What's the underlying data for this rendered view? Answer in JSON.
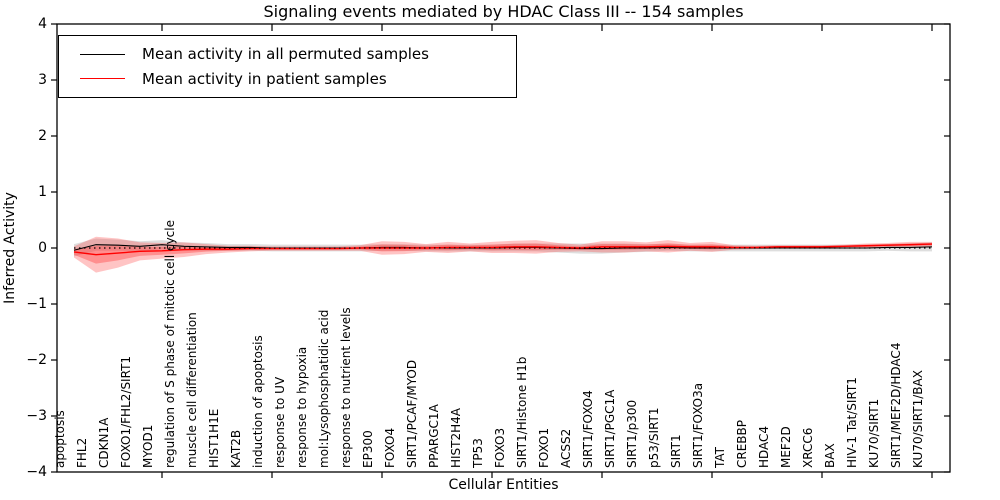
{
  "title": "Signaling events mediated by HDAC Class III -- 154 samples",
  "legend": {
    "entries": [
      {
        "label": "Mean activity in all permuted samples",
        "color": "#000000"
      },
      {
        "label": "Mean activity in patient samples",
        "color": "#ff0000"
      }
    ],
    "position": "upper left"
  },
  "chart_data": {
    "type": "line",
    "title": "Signaling events mediated by HDAC Class III -- 154 samples",
    "xlabel": "Cellular Entities",
    "ylabel": "Inferred Activity",
    "ylim": [
      -4,
      4
    ],
    "yticks": [
      -4,
      -3,
      -2,
      -1,
      0,
      1,
      2,
      3,
      4
    ],
    "grid": false,
    "zero_line": true,
    "legend_position": "upper left",
    "categories": [
      "apoptosis",
      "FHL2",
      "CDKN1A",
      "FOXO1/FHL2/SIRT1",
      "MYOD1",
      "regulation of S phase of mitotic cell cycle",
      "muscle cell differentiation",
      "HIST1H1E",
      "KAT2B",
      "induction of apoptosis",
      "response to UV",
      "response to hypoxia",
      "mol:Lysophosphatidic acid",
      "response to nutrient levels",
      "EP300",
      "FOXO4",
      "SIRT1/PCAF/MYOD",
      "PPARGC1A",
      "HIST2H4A",
      "TP53",
      "FOXO3",
      "SIRT1/Histone H1b",
      "FOXO1",
      "ACSS2",
      "SIRT1/FOXO4",
      "SIRT1/PGC1A",
      "SIRT1/p300",
      "p53/SIRT1",
      "SIRT1",
      "SIRT1/FOXO3a",
      "TAT",
      "CREBBP",
      "HDAC4",
      "MEF2D",
      "XRCC6",
      "BAX",
      "HIV-1 Tat/SIRT1",
      "KU70/SIRT1",
      "SIRT1/MEF2D/HDAC4",
      "KU70/SIRT1/BAX"
    ],
    "series": [
      {
        "name": "Mean activity in all permuted samples",
        "color": "#000000",
        "values": [
          -0.04,
          0.06,
          0.05,
          0.03,
          0.06,
          0.03,
          0.02,
          0.01,
          0.01,
          0.0,
          0.0,
          0.0,
          0.0,
          0.0,
          0.01,
          0.01,
          0.0,
          0.0,
          0.0,
          0.0,
          0.01,
          0.01,
          0.0,
          -0.01,
          -0.01,
          0.0,
          0.0,
          0.01,
          0.0,
          0.0,
          0.0,
          0.0,
          0.0,
          0.0,
          0.0,
          0.0,
          0.0,
          0.01,
          0.01,
          0.02
        ]
      },
      {
        "name": "Mean activity in patient samples",
        "color": "#ff0000",
        "values": [
          -0.07,
          -0.12,
          -0.09,
          -0.06,
          -0.05,
          -0.03,
          -0.02,
          -0.02,
          -0.01,
          -0.01,
          -0.01,
          -0.01,
          -0.01,
          0.0,
          0.0,
          0.0,
          0.0,
          0.01,
          0.01,
          0.01,
          0.02,
          0.02,
          0.01,
          0.0,
          0.02,
          0.02,
          0.02,
          0.03,
          0.02,
          0.02,
          0.01,
          0.01,
          0.02,
          0.02,
          0.02,
          0.03,
          0.04,
          0.05,
          0.06,
          0.07
        ]
      }
    ],
    "bands": [
      {
        "name": "permuted samples range",
        "color": "#c8c8c8",
        "opacity": 0.6,
        "center_series": 0,
        "half_widths": [
          0.11,
          0.11,
          0.1,
          0.09,
          0.08,
          0.07,
          0.07,
          0.06,
          0.06,
          0.06,
          0.06,
          0.06,
          0.06,
          0.06,
          0.06,
          0.06,
          0.06,
          0.06,
          0.06,
          0.06,
          0.07,
          0.07,
          0.08,
          0.09,
          0.09,
          0.08,
          0.07,
          0.06,
          0.06,
          0.06,
          0.06,
          0.06,
          0.06,
          0.06,
          0.06,
          0.06,
          0.06,
          0.06,
          0.07,
          0.08
        ]
      },
      {
        "name": "patient samples range",
        "color": "#ff3b3b",
        "opacity": 0.3,
        "center_series": 1,
        "half_widths": [
          0.1,
          0.32,
          0.26,
          0.16,
          0.14,
          0.13,
          0.09,
          0.06,
          0.05,
          0.04,
          0.04,
          0.04,
          0.04,
          0.05,
          0.12,
          0.11,
          0.07,
          0.1,
          0.07,
          0.1,
          0.11,
          0.12,
          0.08,
          0.06,
          0.1,
          0.1,
          0.08,
          0.11,
          0.07,
          0.09,
          0.04,
          0.03,
          0.03,
          0.03,
          0.03,
          0.03,
          0.04,
          0.04,
          0.05,
          0.04
        ]
      }
    ]
  }
}
